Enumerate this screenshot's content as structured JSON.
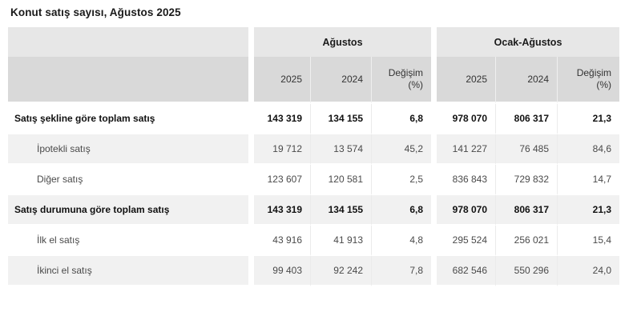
{
  "title": "Konut satış sayısı, Ağustos 2025",
  "chart_data": {
    "type": "table",
    "title": "Konut satış sayısı, Ağustos 2025",
    "column_groups": [
      {
        "label": "Ağustos",
        "span": 3
      },
      {
        "label": "Ocak-Ağustos",
        "span": 3
      }
    ],
    "sub_header": {
      "y2025": "2025",
      "y2024": "2024",
      "change": "Değişim",
      "change_unit": "(%)"
    },
    "columns": [
      "Ağustos 2025",
      "Ağustos 2024",
      "Ağustos Değişim (%)",
      "Ocak-Ağustos 2025",
      "Ocak-Ağustos 2024",
      "Ocak-Ağustos Değişim (%)"
    ],
    "rows": [
      {
        "label": "Satış şekline göre toplam satış",
        "style": "total",
        "values": [
          "143 319",
          "134 155",
          "6,8",
          "978 070",
          "806 317",
          "21,3"
        ]
      },
      {
        "label": "İpotekli satış",
        "style": "sub",
        "values": [
          "19 712",
          "13 574",
          "45,2",
          "141 227",
          "76 485",
          "84,6"
        ]
      },
      {
        "label": "Diğer satış",
        "style": "sub",
        "values": [
          "123 607",
          "120 581",
          "2,5",
          "836 843",
          "729 832",
          "14,7"
        ]
      },
      {
        "label": "Satış durumuna göre toplam satış",
        "style": "total",
        "values": [
          "143 319",
          "134 155",
          "6,8",
          "978 070",
          "806 317",
          "21,3"
        ]
      },
      {
        "label": "İlk el satış",
        "style": "sub",
        "values": [
          "43 916",
          "41 913",
          "4,8",
          "295 524",
          "256 021",
          "15,4"
        ]
      },
      {
        "label": "İkinci el satış",
        "style": "sub",
        "values": [
          "99 403",
          "92 242",
          "7,8",
          "682 546",
          "550 296",
          "24,0"
        ]
      }
    ]
  },
  "colors": {
    "group_header_bg": "#e7e7e7",
    "year_header_bg": "#d9d9d9",
    "row_alt_bg": "#f1f1f1",
    "text_bold": "#1a1a1a",
    "text_regular": "#4a4a4a"
  }
}
